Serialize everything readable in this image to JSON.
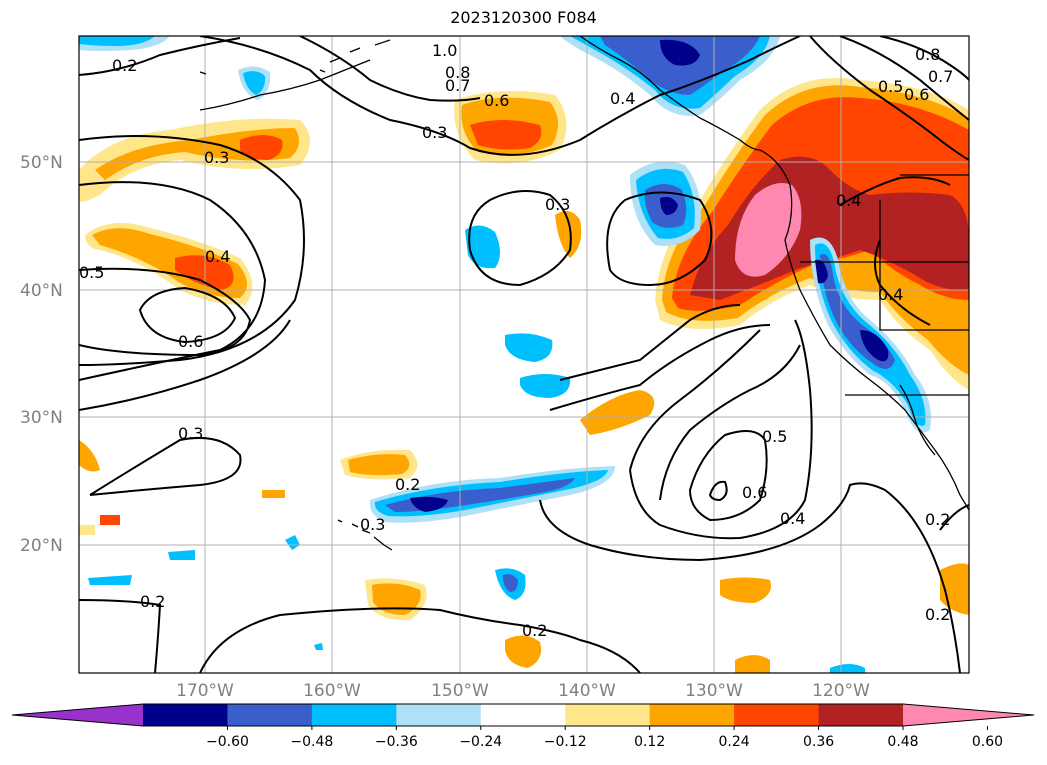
{
  "title": "2023120300 F084",
  "map": {
    "lon_labels": [
      "170°W",
      "160°W",
      "150°W",
      "140°W",
      "130°W",
      "120°W"
    ],
    "lat_labels": [
      "50°N",
      "40°N",
      "30°N",
      "20°N"
    ],
    "contour_labels": [
      "0.2",
      "0.3",
      "0.4",
      "0.5",
      "0.6",
      "0.7",
      "0.8",
      "1.0"
    ],
    "contour_color": "#000000",
    "gridline_color": "#b0b0b0"
  },
  "colorbar": {
    "ticks": [
      "−0.60",
      "−0.48",
      "−0.36",
      "−0.24",
      "−0.12",
      "0.12",
      "0.24",
      "0.36",
      "0.48",
      "0.60"
    ],
    "colors": [
      "#9932cc",
      "#00008b",
      "#3a5fcd",
      "#00bfff",
      "#aee0f7",
      "#ffffff",
      "#ffe68a",
      "#ffa500",
      "#ff4500",
      "#b22222",
      "#ff88b0"
    ]
  },
  "fill_colors": {
    "pink": "#ff88b0",
    "darkred": "#b22222",
    "red": "#ff4500",
    "orange": "#ffa500",
    "yellow": "#ffe68a",
    "lightblue": "#aee0f7",
    "cyan": "#00bfff",
    "blue": "#3a5fcd",
    "navy": "#00008b"
  }
}
